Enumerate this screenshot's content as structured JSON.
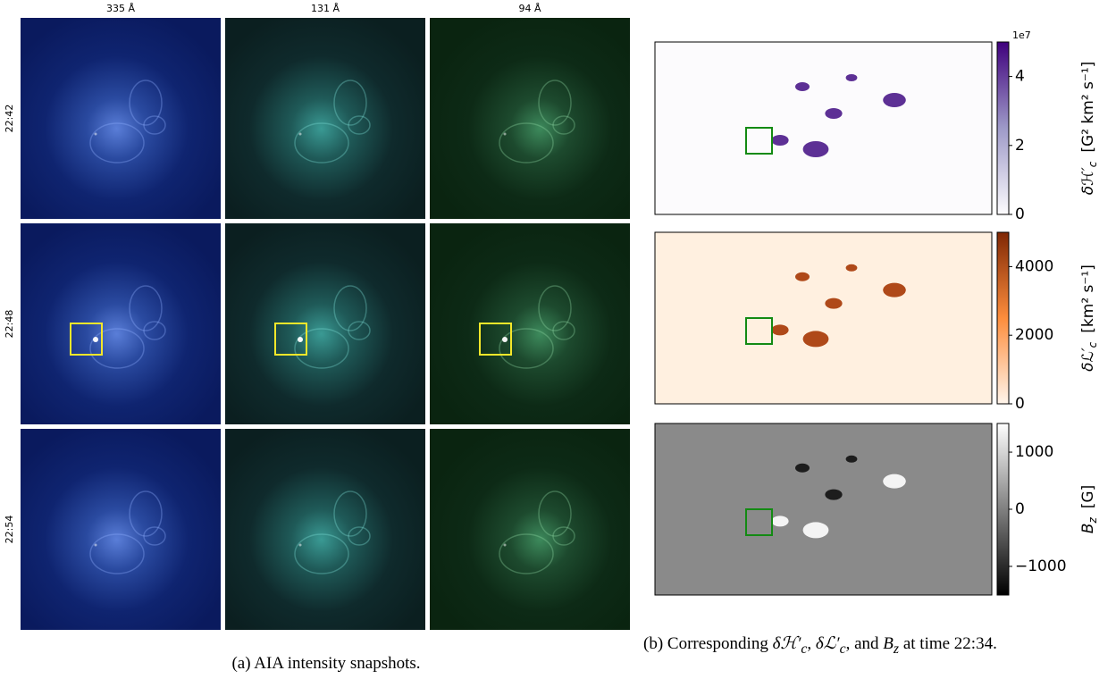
{
  "figure_a": {
    "columns": [
      "335 Å",
      "131 Å",
      "94 Å"
    ],
    "rows": [
      "22:42",
      "22:48",
      "22:54"
    ],
    "caption": "(a) AIA intensity snapshots."
  },
  "figure_b": {
    "panels": [
      {
        "label": {
          "symbol": "δℋ′",
          "sub": "c",
          "unit": "[G² km² s⁻¹]"
        },
        "offset": "1e7",
        "ticks": [
          "0",
          "2",
          "4"
        ]
      },
      {
        "label": {
          "symbol": "δℒ′",
          "sub": "c",
          "unit": "[km² s⁻¹]"
        },
        "ticks": [
          "0",
          "2000",
          "4000"
        ]
      },
      {
        "label": {
          "symbol": "B",
          "sub": "z",
          "unit": "[G]"
        },
        "ticks": [
          "−1000",
          "0",
          "1000"
        ]
      }
    ],
    "caption": [
      "(b) Corresponding ",
      "δℋ′",
      "c",
      ", ",
      "δℒ′",
      "c",
      ", and ",
      "B",
      "z",
      " at time 22:34."
    ]
  }
}
